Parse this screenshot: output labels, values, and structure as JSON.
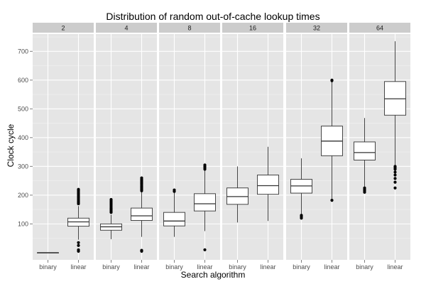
{
  "chart_data": {
    "type": "boxplot",
    "title": "Distribution of random out-of-cache lookup times",
    "xlabel": "Search algorithm",
    "ylabel": "Clock cycle",
    "ylim": [
      -25,
      760
    ],
    "y_ticks": [
      100,
      200,
      300,
      400,
      500,
      600,
      700
    ],
    "categories": [
      "binary",
      "linear"
    ],
    "facet_labels": [
      "2",
      "4",
      "8",
      "16",
      "32",
      64
    ],
    "grid": true,
    "facets": [
      {
        "label": "2",
        "boxes": [
          {
            "category": "binary",
            "min": 0,
            "q1": 0,
            "median": 0,
            "q3": 0,
            "max": 0,
            "outliers": []
          },
          {
            "category": "linear",
            "min": 45,
            "q1": 92,
            "median": 107,
            "q3": 120,
            "max": 162,
            "outliers": [
              170,
              175,
              180,
              185,
              190,
              195,
              200,
              205,
              210,
              215,
              220,
              35,
              25,
              10,
              5
            ]
          }
        ]
      },
      {
        "label": "4",
        "boxes": [
          {
            "category": "binary",
            "min": 47,
            "q1": 78,
            "median": 90,
            "q3": 100,
            "max": 132,
            "outliers": [
              140,
              145,
              150,
              155,
              160,
              165,
              170,
              175,
              180,
              185
            ]
          },
          {
            "category": "linear",
            "min": 55,
            "q1": 112,
            "median": 128,
            "q3": 155,
            "max": 210,
            "outliers": [
              215,
              220,
              225,
              230,
              235,
              240,
              245,
              250,
              255,
              260,
              8,
              5
            ]
          }
        ]
      },
      {
        "label": "8",
        "boxes": [
          {
            "category": "binary",
            "min": 55,
            "q1": 93,
            "median": 110,
            "q3": 140,
            "max": 208,
            "outliers": [
              213,
              218
            ]
          },
          {
            "category": "linear",
            "min": 75,
            "q1": 145,
            "median": 170,
            "q3": 205,
            "max": 285,
            "outliers": [
              290,
              295,
              300,
              305,
              10
            ]
          }
        ]
      },
      {
        "label": "16",
        "boxes": [
          {
            "category": "binary",
            "min": 105,
            "q1": 168,
            "median": 195,
            "q3": 225,
            "max": 300,
            "outliers": []
          },
          {
            "category": "linear",
            "min": 110,
            "q1": 203,
            "median": 233,
            "q3": 270,
            "max": 368,
            "outliers": []
          }
        ]
      },
      {
        "label": "32",
        "boxes": [
          {
            "category": "binary",
            "min": 135,
            "q1": 207,
            "median": 232,
            "q3": 255,
            "max": 328,
            "outliers": [
              130,
              125,
              120
            ]
          },
          {
            "category": "linear",
            "min": 185,
            "q1": 337,
            "median": 388,
            "q3": 440,
            "max": 595,
            "outliers": [
              598,
              600,
              182
            ]
          }
        ]
      },
      {
        "label": "64",
        "boxes": [
          {
            "category": "binary",
            "min": 230,
            "q1": 322,
            "median": 348,
            "q3": 385,
            "max": 468,
            "outliers": [
              225,
              220,
              215,
              210
            ]
          },
          {
            "category": "linear",
            "min": 305,
            "q1": 478,
            "median": 535,
            "q3": 595,
            "max": 735,
            "outliers": [
              300,
              295,
              290,
              280,
              270,
              258,
              245,
              225
            ]
          }
        ]
      }
    ]
  }
}
